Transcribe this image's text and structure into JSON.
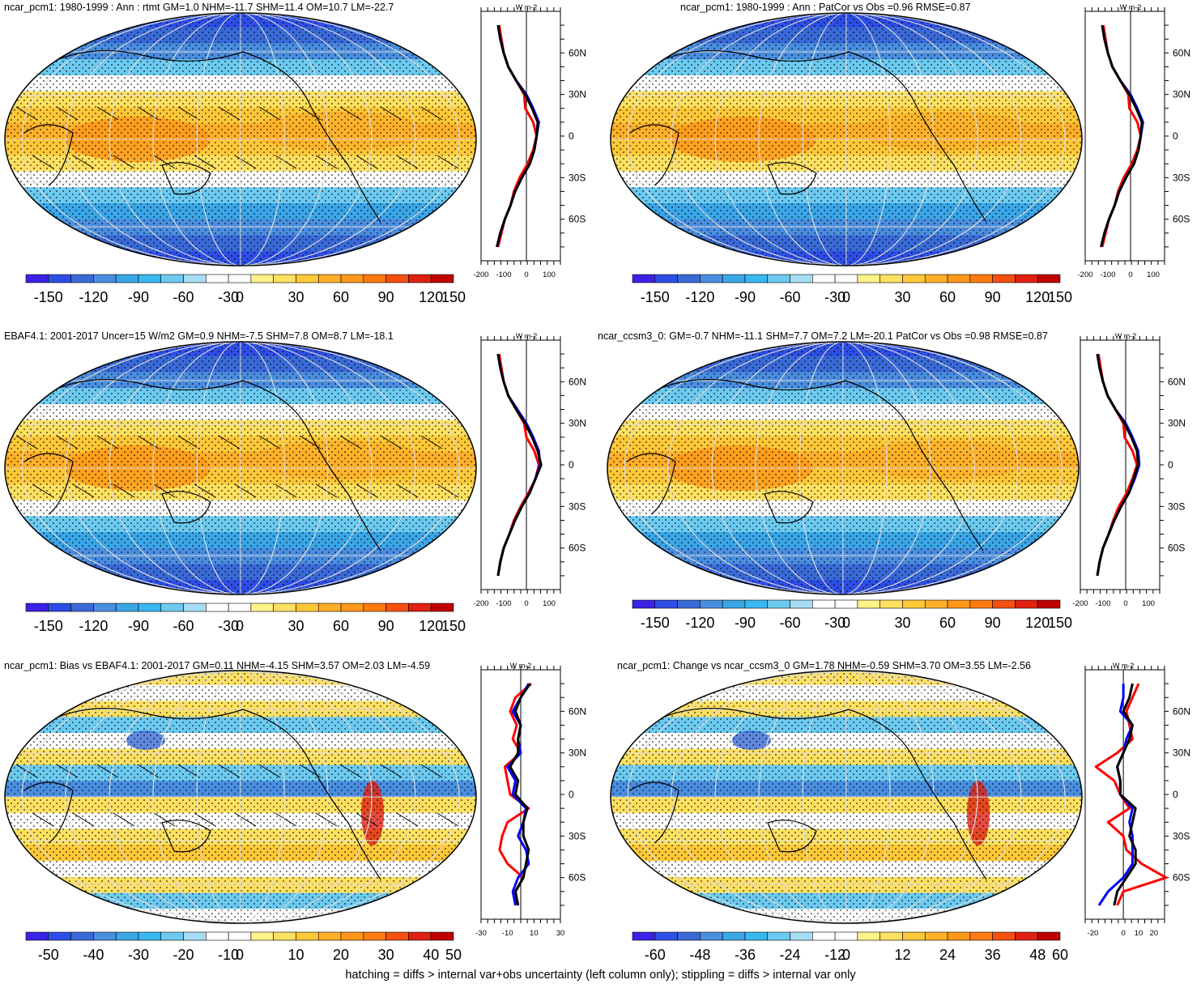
{
  "footer_note": "hatching = diffs > internal var+obs uncertainty (left column only); stippling = diffs > internal var only",
  "palette": {
    "cool": [
      "#3b22e6",
      "#2d4ee6",
      "#3a6ad8",
      "#4a8ee0",
      "#3aa6e8",
      "#38b8f0",
      "#6ccaf0",
      "#a6dcf4"
    ],
    "neutral": "#ffffff",
    "warm": [
      "#fff38a",
      "#ffe060",
      "#ffc838",
      "#ffb028",
      "#ff9818",
      "#ff7a10",
      "#f55010",
      "#e02010",
      "#c00000"
    ]
  },
  "profile_legend": {
    "red": "#ff0000",
    "blue": "#0000ff",
    "black": "#000000"
  },
  "chart_data": [
    {
      "type": "heatmap",
      "title": "ncar_pcm1: 1980-1999 : Ann : rtmt GM=1.0 NHM=-11.7 SHM=11.4 OM=10.7 LM=-22.7",
      "colorbar_ticks": [
        "-150",
        "-120",
        "-90",
        "-60",
        "-30",
        "0",
        "30",
        "60",
        "90",
        "120",
        "150"
      ],
      "hatching": true,
      "profile": {
        "xlabel": "W m-2",
        "xticks": [
          "-200",
          "-100",
          "0",
          "100"
        ],
        "xlim": [
          -200,
          150
        ],
        "yticks": [
          "60N",
          "30N",
          "0",
          "30S",
          "60S"
        ],
        "lat": [
          80,
          70,
          60,
          50,
          40,
          30,
          20,
          10,
          0,
          -10,
          -20,
          -30,
          -40,
          -50,
          -60,
          -70,
          -80
        ],
        "series": [
          {
            "color": "red",
            "values": [
              -120,
              -110,
              -100,
              -80,
              -45,
              -10,
              -5,
              30,
              45,
              30,
              5,
              -30,
              -55,
              -70,
              -95,
              -110,
              -125
            ]
          },
          {
            "color": "blue",
            "values": [
              -125,
              -115,
              -100,
              -80,
              -45,
              0,
              30,
              55,
              45,
              35,
              15,
              -20,
              -50,
              -70,
              -95,
              -115,
              -130
            ]
          },
          {
            "color": "black",
            "values": [
              -125,
              -115,
              -100,
              -80,
              -45,
              -5,
              25,
              50,
              45,
              35,
              15,
              -20,
              -50,
              -70,
              -95,
              -115,
              -130
            ]
          }
        ]
      }
    },
    {
      "type": "heatmap",
      "title": "ncar_pcm1: 1980-1999 : Ann : PatCor vs Obs =0.96 RMSE=0.87",
      "colorbar_ticks": [
        "-150",
        "-120",
        "-90",
        "-60",
        "-30",
        "0",
        "30",
        "60",
        "90",
        "120",
        "150"
      ],
      "hatching": false,
      "profile": {
        "xlabel": "W m-2",
        "xticks": [
          "-200",
          "-100",
          "0",
          "100"
        ],
        "xlim": [
          -200,
          150
        ],
        "yticks": [
          "60N",
          "30N",
          "0",
          "30S",
          "60S"
        ],
        "lat": [
          80,
          70,
          60,
          50,
          40,
          30,
          20,
          10,
          0,
          -10,
          -20,
          -30,
          -40,
          -50,
          -60,
          -70,
          -80
        ],
        "series": [
          {
            "color": "red",
            "values": [
              -120,
              -110,
              -100,
              -80,
              -45,
              -10,
              -5,
              30,
              45,
              30,
              5,
              -30,
              -55,
              -70,
              -95,
              -110,
              -125
            ]
          },
          {
            "color": "blue",
            "values": [
              -125,
              -115,
              -100,
              -80,
              -45,
              0,
              30,
              55,
              45,
              35,
              15,
              -20,
              -50,
              -70,
              -95,
              -115,
              -130
            ]
          },
          {
            "color": "black",
            "values": [
              -125,
              -115,
              -100,
              -80,
              -45,
              -5,
              25,
              50,
              45,
              35,
              15,
              -20,
              -50,
              -70,
              -95,
              -115,
              -130
            ]
          }
        ]
      }
    },
    {
      "type": "heatmap",
      "title": "EBAF4.1: 2001-2017 Uncer=15 W/m2 GM=0.9 NHM=-7.5 SHM=7.8 OM=8.7 LM=-18.1",
      "colorbar_ticks": [
        "-150",
        "-120",
        "-90",
        "-60",
        "-30",
        "0",
        "30",
        "60",
        "90",
        "120",
        "150"
      ],
      "hatching": true,
      "profile": {
        "xlabel": "W m-2",
        "xticks": [
          "-200",
          "-100",
          "0",
          "100"
        ],
        "xlim": [
          -200,
          150
        ],
        "yticks": [
          "60N",
          "30N",
          "0",
          "30S",
          "60S"
        ],
        "lat": [
          80,
          70,
          60,
          50,
          40,
          30,
          20,
          10,
          0,
          -10,
          -20,
          -30,
          -40,
          -50,
          -60,
          -70,
          -80
        ],
        "series": [
          {
            "color": "red",
            "values": [
              -120,
              -110,
              -100,
              -80,
              -45,
              -10,
              0,
              35,
              55,
              40,
              10,
              -25,
              -55,
              -75,
              -100,
              -115,
              -125
            ]
          },
          {
            "color": "blue",
            "values": [
              -125,
              -115,
              -100,
              -80,
              -40,
              0,
              30,
              55,
              60,
              40,
              15,
              -20,
              -50,
              -75,
              -100,
              -115,
              -125
            ]
          },
          {
            "color": "black",
            "values": [
              -125,
              -115,
              -100,
              -80,
              -45,
              -5,
              25,
              50,
              65,
              40,
              15,
              -20,
              -50,
              -75,
              -100,
              -115,
              -125
            ]
          }
        ]
      }
    },
    {
      "type": "heatmap",
      "title": "ncar_ccsm3_0: GM=-0.7 NHM=-11.1 SHM=7.7 OM=7.2 LM=-20.1 PatCor vs Obs =0.98 RMSE=0.87",
      "colorbar_ticks": [
        "-150",
        "-120",
        "-90",
        "-60",
        "-30",
        "0",
        "30",
        "60",
        "90",
        "120",
        "150"
      ],
      "hatching": false,
      "profile": {
        "xlabel": "W m-2",
        "xticks": [
          "-200",
          "-100",
          "0",
          "100"
        ],
        "xlim": [
          -200,
          150
        ],
        "yticks": [
          "60N",
          "30N",
          "0",
          "30S",
          "60S"
        ],
        "lat": [
          80,
          70,
          60,
          50,
          40,
          30,
          20,
          10,
          0,
          -10,
          -20,
          -30,
          -40,
          -50,
          -60,
          -70,
          -80
        ],
        "series": [
          {
            "color": "red",
            "values": [
              -120,
              -110,
              -100,
              -80,
              -45,
              -10,
              -5,
              30,
              50,
              30,
              5,
              -30,
              -55,
              -75,
              -100,
              -115,
              -125
            ]
          },
          {
            "color": "blue",
            "values": [
              -125,
              -115,
              -100,
              -80,
              -45,
              0,
              30,
              55,
              60,
              40,
              15,
              -20,
              -50,
              -75,
              -100,
              -115,
              -125
            ]
          },
          {
            "color": "black",
            "values": [
              -125,
              -115,
              -100,
              -80,
              -45,
              -5,
              25,
              50,
              55,
              35,
              15,
              -20,
              -50,
              -75,
              -100,
              -115,
              -125
            ]
          }
        ]
      }
    },
    {
      "type": "heatmap",
      "title": "ncar_pcm1: Bias vs EBAF4.1: 2001-2017 GM=0.11 NHM=-4.15 SHM=3.57 OM=2.03 LM=-4.59",
      "colorbar_ticks": [
        "-50",
        "-40",
        "-30",
        "-20",
        "-10",
        "0",
        "10",
        "20",
        "30",
        "40",
        "50"
      ],
      "hatching": true,
      "profile": {
        "xlabel": "W m-2",
        "xticks": [
          "-30",
          "-10",
          "10",
          "30"
        ],
        "xlim": [
          -30,
          30
        ],
        "yticks": [
          "60N",
          "30N",
          "0",
          "30S",
          "60S"
        ],
        "lat": [
          80,
          70,
          60,
          50,
          40,
          30,
          20,
          10,
          0,
          -10,
          -20,
          -30,
          -40,
          -50,
          -60,
          -70,
          -80
        ],
        "series": [
          {
            "color": "red",
            "values": [
              8,
              -4,
              -8,
              -3,
              -6,
              0,
              -12,
              -10,
              -8,
              6,
              -10,
              -14,
              -16,
              -10,
              2,
              -4,
              -3
            ]
          },
          {
            "color": "blue",
            "values": [
              6,
              0,
              -6,
              0,
              -2,
              0,
              -10,
              -4,
              -6,
              4,
              2,
              -2,
              4,
              6,
              -2,
              -6,
              -4
            ]
          },
          {
            "color": "black",
            "values": [
              7,
              0,
              -4,
              0,
              -2,
              -2,
              -8,
              -2,
              -4,
              5,
              2,
              2,
              6,
              4,
              2,
              -4,
              -2
            ]
          }
        ]
      }
    },
    {
      "type": "heatmap",
      "title": "ncar_pcm1: Change vs ncar_ccsm3_0 GM=1.78 NHM=-0.59 SHM=3.70 OM=3.55 LM=-2.56",
      "colorbar_ticks": [
        "-60",
        "-48",
        "-36",
        "-24",
        "-12",
        "0",
        "12",
        "24",
        "36",
        "48",
        "60"
      ],
      "hatching": false,
      "profile": {
        "xlabel": "W m-2",
        "xticks": [
          "-20",
          "0",
          "10",
          "20"
        ],
        "xlim": [
          -25,
          27
        ],
        "yticks": [
          "60N",
          "30N",
          "0",
          "30S",
          "60S"
        ],
        "lat": [
          80,
          70,
          60,
          50,
          40,
          30,
          20,
          10,
          0,
          -10,
          -20,
          -30,
          -40,
          -50,
          -60,
          -70,
          -80
        ],
        "series": [
          {
            "color": "red",
            "values": [
              10,
              6,
              2,
              4,
              6,
              -4,
              -18,
              -6,
              -2,
              4,
              -10,
              0,
              2,
              12,
              28,
              0,
              -4
            ]
          },
          {
            "color": "blue",
            "values": [
              0,
              0,
              -2,
              6,
              2,
              0,
              -4,
              -2,
              -2,
              6,
              4,
              6,
              6,
              6,
              0,
              -10,
              -16
            ]
          },
          {
            "color": "black",
            "values": [
              6,
              4,
              0,
              6,
              4,
              0,
              -4,
              -2,
              -2,
              8,
              6,
              4,
              8,
              8,
              2,
              -4,
              -6
            ]
          }
        ]
      }
    }
  ]
}
